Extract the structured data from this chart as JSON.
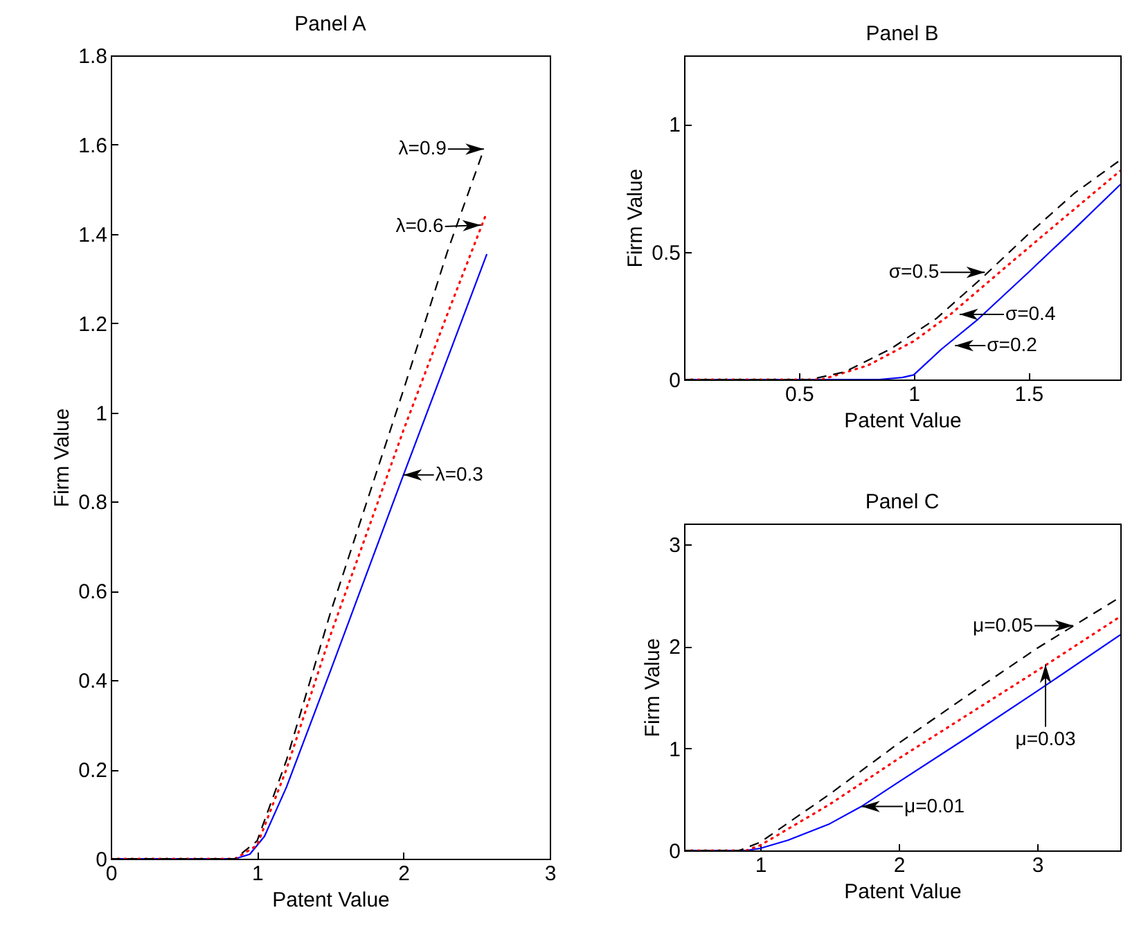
{
  "chart_data": [
    {
      "type": "line",
      "title": "Panel A",
      "xlabel": "Patent Value",
      "ylabel": "Firm Value",
      "xlim": [
        0,
        3
      ],
      "ylim": [
        0,
        1.8
      ],
      "xticks": [
        0,
        1,
        2,
        3
      ],
      "yticks": [
        0,
        0.2,
        0.4,
        0.6,
        0.8,
        1,
        1.2,
        1.4,
        1.6,
        1.8
      ],
      "grid": false,
      "legend": false,
      "series": [
        {
          "color": "#0000ff",
          "line_style": "solid",
          "x": [
            0,
            0.85,
            0.95,
            1.05,
            1.2,
            1.5,
            2.0,
            2.3,
            2.57
          ],
          "values": [
            0,
            0,
            0.01,
            0.05,
            0.16,
            0.42,
            0.86,
            1.12,
            1.355
          ]
        },
        {
          "color": "#ff0000",
          "line_style": "dotted",
          "x": [
            0,
            0.85,
            1.0,
            1.2,
            1.5,
            2.0,
            2.3,
            2.56
          ],
          "values": [
            0,
            0,
            0.03,
            0.2,
            0.5,
            0.96,
            1.22,
            1.44
          ]
        },
        {
          "color": "#000000",
          "line_style": "dashed",
          "x": [
            0,
            0.85,
            1.0,
            1.2,
            1.5,
            2.0,
            2.3,
            2.55
          ],
          "values": [
            0,
            0,
            0.04,
            0.22,
            0.55,
            1.05,
            1.36,
            1.59
          ]
        }
      ],
      "annotations": [
        {
          "text": "λ=0.9",
          "x": 2.55,
          "y": 1.59
        },
        {
          "text": "λ=0.6",
          "x": 2.53,
          "y": 1.42
        },
        {
          "text": "λ=0.3",
          "x": 2.0,
          "y": 0.86
        }
      ]
    },
    {
      "type": "line",
      "title": "Panel B",
      "xlabel": "Patent Value",
      "ylabel": "Firm Value",
      "xlim": [
        0,
        1.9
      ],
      "ylim": [
        0,
        1.27
      ],
      "xticks": [
        0.5,
        1,
        1.5
      ],
      "yticks": [
        0,
        0.5,
        1
      ],
      "grid": false,
      "legend": false,
      "series": [
        {
          "color": "#0000ff",
          "line_style": "solid",
          "x": [
            0,
            0.85,
            0.95,
            1.0,
            1.12,
            1.28,
            1.5,
            1.7,
            1.9
          ],
          "values": [
            0,
            0,
            0.008,
            0.018,
            0.118,
            0.236,
            0.42,
            0.59,
            0.764
          ]
        },
        {
          "color": "#ff0000",
          "line_style": "dotted",
          "x": [
            0,
            0.6,
            0.8,
            1.0,
            1.16,
            1.4,
            1.65,
            1.9
          ],
          "values": [
            0,
            0,
            0.055,
            0.15,
            0.255,
            0.44,
            0.63,
            0.818
          ]
        },
        {
          "color": "#000000",
          "line_style": "dashed",
          "x": [
            0,
            0.55,
            0.7,
            0.9,
            1.1,
            1.3,
            1.5,
            1.7,
            1.9
          ],
          "values": [
            0,
            0,
            0.03,
            0.12,
            0.24,
            0.4,
            0.57,
            0.73,
            0.86
          ]
        }
      ],
      "annotations": [
        {
          "text": "σ=0.5",
          "x": 1.31,
          "y": 0.42
        },
        {
          "text": "σ=0.4",
          "x": 1.2,
          "y": 0.255
        },
        {
          "text": "σ=0.2",
          "x": 1.18,
          "y": 0.133
        }
      ]
    },
    {
      "type": "line",
      "title": "Panel C",
      "xlabel": "Patent Value",
      "ylabel": "Firm Value",
      "xlim": [
        0.45,
        3.6
      ],
      "ylim": [
        0,
        3.2
      ],
      "xticks": [
        1,
        2,
        3
      ],
      "yticks": [
        0,
        1,
        2,
        3
      ],
      "grid": false,
      "legend": false,
      "series": [
        {
          "color": "#0000ff",
          "line_style": "solid",
          "x": [
            0.45,
            0.9,
            1.0,
            1.2,
            1.5,
            1.73,
            2.0,
            2.5,
            3.0,
            3.6
          ],
          "values": [
            0,
            0,
            0.02,
            0.1,
            0.26,
            0.43,
            0.67,
            1.11,
            1.56,
            2.11
          ]
        },
        {
          "color": "#ff0000",
          "line_style": "dotted",
          "x": [
            0.45,
            0.9,
            1.0,
            1.5,
            2.0,
            2.5,
            3.0,
            3.6
          ],
          "values": [
            0,
            0,
            0.05,
            0.45,
            0.9,
            1.33,
            1.76,
            2.29
          ]
        },
        {
          "color": "#000000",
          "line_style": "dashed",
          "x": [
            0.45,
            0.85,
            1.0,
            1.5,
            2.0,
            2.5,
            3.0,
            3.6
          ],
          "values": [
            0,
            0,
            0.08,
            0.55,
            1.05,
            1.52,
            1.98,
            2.48
          ]
        }
      ],
      "annotations": [
        {
          "text": "μ=0.05",
          "x": 3.26,
          "y": 2.2
        },
        {
          "text": "μ=0.03",
          "x": 3.06,
          "y": 1.82
        },
        {
          "text": "μ=0.01",
          "x": 1.73,
          "y": 0.43
        }
      ]
    }
  ]
}
